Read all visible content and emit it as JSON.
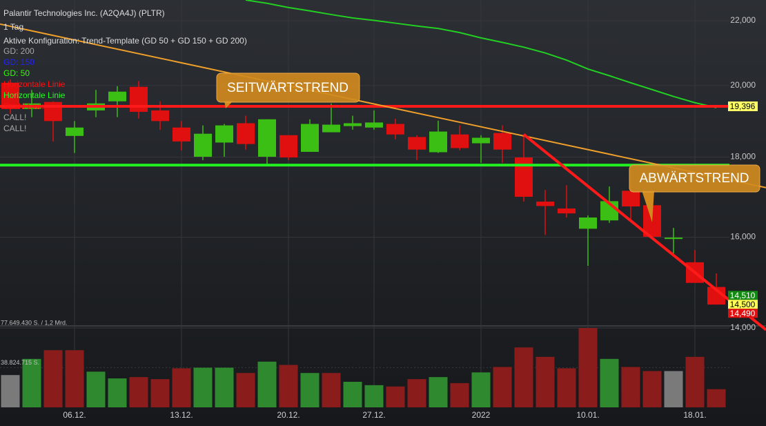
{
  "chart_data": {
    "type": "candlestick",
    "title": "Palantir Technologies Inc. (A2QA4J) (PLTR)",
    "subtitle": "1 Tag",
    "config": "Aktive Konfiguration: Trend-Template (GD 50 + GD 150 + GD 200)",
    "legend": [
      {
        "name": "GD: 200",
        "color": "#a8a8a8"
      },
      {
        "name": "GD: 150",
        "color": "#2222ff"
      },
      {
        "name": "GD: 50",
        "color": "#33ff00"
      },
      {
        "name": "Horizontale Linie",
        "color": "#ff1010"
      },
      {
        "name": "Horizontale Linie",
        "color": "#22ff22"
      },
      {
        "name": "Strahl Linie",
        "color": "#ff1010"
      },
      {
        "name": "CALL!",
        "color": "#a8a8a8"
      },
      {
        "name": "CALL!",
        "color": "#a8a8a8"
      }
    ],
    "log_scale": true,
    "categories": [
      null,
      null,
      null,
      "06.12.",
      null,
      null,
      null,
      null,
      "13.12.",
      null,
      null,
      null,
      null,
      "20.12.",
      null,
      null,
      null,
      "27.12.",
      null,
      null,
      null,
      null,
      "2022",
      null,
      null,
      null,
      null,
      "10.01.",
      null,
      null,
      null,
      null,
      "18.01.",
      null
    ],
    "open": [
      20080,
      19320,
      19520,
      18570,
      19280,
      19540,
      19960,
      19280,
      18800,
      18010,
      18390,
      18920,
      18010,
      18590,
      18140,
      18670,
      18840,
      18800,
      18900,
      18540,
      18130,
      18610,
      18370,
      18650,
      17990,
      16860,
      16690,
      16200,
      16400,
      17130,
      16770,
      15960,
      15420,
      14870
    ],
    "high": [
      20180,
      19870,
      19540,
      18980,
      19870,
      19980,
      20130,
      19540,
      18980,
      18860,
      18900,
      19130,
      19030,
      18590,
      19030,
      19480,
      19130,
      19280,
      19050,
      18590,
      18990,
      18860,
      18590,
      18860,
      18610,
      17150,
      17270,
      16520,
      17240,
      17270,
      16790,
      16220,
      15700,
      15170
    ],
    "low": [
      19180,
      19090,
      18420,
      18110,
      19090,
      19090,
      19050,
      18740,
      18180,
      17920,
      18010,
      18200,
      17810,
      17920,
      18140,
      18670,
      18740,
      18740,
      18480,
      17920,
      18110,
      18180,
      17850,
      17850,
      16860,
      16050,
      16470,
      15340,
      16340,
      16420,
      15960,
      15620,
      14960,
      14490
    ],
    "close": [
      19320,
      19480,
      18980,
      18800,
      19480,
      19820,
      19240,
      18980,
      18420,
      18630,
      18860,
      18350,
      19030,
      17990,
      18900,
      18880,
      18920,
      18940,
      18610,
      18200,
      18690,
      18240,
      18520,
      18200,
      16980,
      16750,
      16570,
      16470,
      16870,
      16740,
      16010,
      15990,
      14960,
      14490
    ],
    "up_color": "#3cbf14",
    "down_color": "#e01010",
    "ylim": [
      14000,
      22680
    ],
    "yticks": [
      {
        "value": 14000,
        "label": "14,000"
      },
      {
        "value": 16000,
        "label": "16,000"
      },
      {
        "value": 18000,
        "label": "18,000"
      },
      {
        "value": 20000,
        "label": "20,000"
      },
      {
        "value": 22000,
        "label": "22,000"
      }
    ],
    "ma50": {
      "color": "#22d022",
      "values": [
        null,
        null,
        null,
        null,
        null,
        null,
        null,
        null,
        null,
        null,
        null,
        22680,
        22570,
        22430,
        22320,
        22200,
        22090,
        22010,
        21920,
        21830,
        21750,
        21620,
        21450,
        21310,
        21160,
        20980,
        20760,
        20490,
        20290,
        20080,
        19880,
        19680,
        19500,
        19360
      ]
    },
    "levels": [
      {
        "value": 19396,
        "label": "19,396",
        "color": "#ff1a1a",
        "tag_color": "#ffff66",
        "text_color": "#000000"
      },
      {
        "value": 17790,
        "color": "#22ee22"
      }
    ],
    "trendlines": [
      {
        "color": "#f0a02a",
        "points": [
          [
            0,
            21820
          ],
          [
            33,
            17480
          ]
        ]
      },
      {
        "color": "#ff1a1a",
        "points": [
          [
            24,
            18610
          ],
          [
            33,
            14810
          ]
        ]
      }
    ],
    "price_tags": [
      {
        "value": 14510,
        "label": "14,510",
        "color": "#128a12",
        "text_color": "#ffffff"
      },
      {
        "value": 14500,
        "label": "14,500",
        "color": "#ffff55",
        "text_color": "#000000"
      },
      {
        "value": 14490,
        "label": "14,490",
        "color": "#e01010",
        "text_color": "#ffffff"
      }
    ],
    "annotations": [
      "SEITWÄRTSTREND",
      "ABWÄRTSTREND"
    ],
    "volume": {
      "values": [
        31600000,
        47400000,
        55900000,
        55900000,
        34900000,
        28300000,
        29600000,
        27600000,
        38200000,
        38800000,
        38800000,
        33600000,
        44700000,
        41500000,
        33600000,
        33600000,
        25000000,
        21700000,
        20400000,
        27600000,
        29600000,
        23700000,
        34200000,
        39500000,
        58600000,
        49400000,
        38200000,
        77600000,
        47400000,
        39500000,
        35500000,
        35500000,
        49400000,
        17800000
      ],
      "colors": [
        "#7a7a7a",
        "#2f8a2f",
        "#8b1c1c",
        "#8b1c1c",
        "#2f8a2f",
        "#2f8a2f",
        "#8b1c1c",
        "#8b1c1c",
        "#8b1c1c",
        "#2f8a2f",
        "#2f8a2f",
        "#8b1c1c",
        "#2f8a2f",
        "#8b1c1c",
        "#2f8a2f",
        "#8b1c1c",
        "#2f8a2f",
        "#2f8a2f",
        "#8b1c1c",
        "#8b1c1c",
        "#2f8a2f",
        "#8b1c1c",
        "#2f8a2f",
        "#8b1c1c",
        "#8b1c1c",
        "#8b1c1c",
        "#8b1c1c",
        "#8b1c1c",
        "#2f8a2f",
        "#8b1c1c",
        "#8b1c1c",
        "#7a7a7a",
        "#8b1c1c",
        "#8b1c1c"
      ],
      "ylim": [
        0,
        77649430
      ],
      "yticks": [
        {
          "value": 77649430,
          "label": "77.649.430 S. / 1,2 Mrd."
        },
        {
          "value": 38824715,
          "label": "38.824.715 S."
        }
      ]
    }
  }
}
